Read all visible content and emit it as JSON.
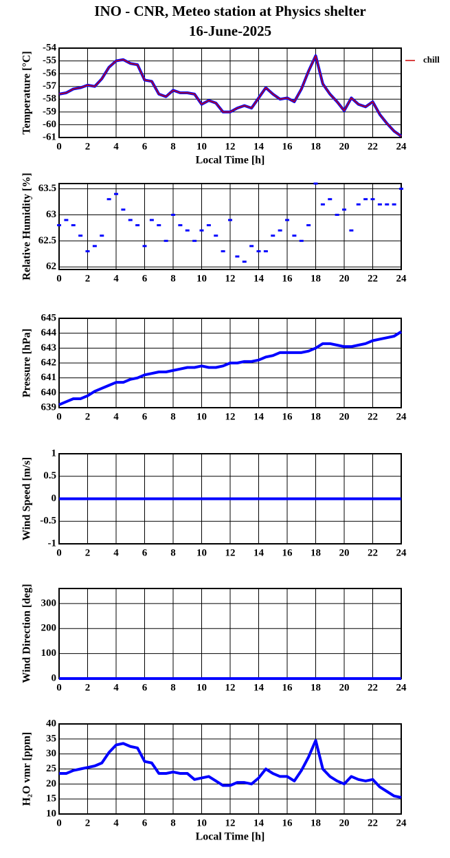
{
  "title": "INO - CNR, Meteo station at Physics shelter",
  "date": "16-June-2025",
  "chart_data": [
    {
      "type": "line",
      "ylabel": "Temperature [°C]",
      "xlabel": "Local Time [h]",
      "x": [
        0,
        0.5,
        1,
        1.5,
        2,
        2.5,
        3,
        3.5,
        4,
        4.5,
        5,
        5.5,
        6,
        6.5,
        7,
        7.5,
        8,
        8.5,
        9,
        9.5,
        10,
        10.5,
        11,
        11.5,
        12,
        12.5,
        13,
        13.5,
        14,
        14.5,
        15,
        15.5,
        16,
        16.5,
        17,
        17.5,
        18,
        18.5,
        19,
        19.5,
        20,
        20.5,
        21,
        21.5,
        22,
        22.5,
        23,
        23.5,
        24
      ],
      "xlim": [
        0,
        24
      ],
      "xticks": [
        0,
        2,
        4,
        6,
        8,
        10,
        12,
        14,
        16,
        18,
        20,
        22,
        24
      ],
      "ylim": [
        -61,
        -54
      ],
      "yticks": [
        -61,
        -60,
        -59,
        -58,
        -57,
        -56,
        -55,
        -54
      ],
      "grid": true,
      "legend": "right",
      "series": [
        {
          "color": "#0000ff",
          "values": [
            -57.6,
            -57.5,
            -57.2,
            -57.1,
            -56.9,
            -57.0,
            -56.4,
            -55.5,
            -55.0,
            -54.9,
            -55.2,
            -55.3,
            -56.5,
            -56.6,
            -57.6,
            -57.8,
            -57.3,
            -57.5,
            -57.5,
            -57.6,
            -58.4,
            -58.1,
            -58.3,
            -59.0,
            -59.0,
            -58.7,
            -58.5,
            -58.7,
            -57.9,
            -57.1,
            -57.6,
            -58.0,
            -57.9,
            -58.2,
            -57.2,
            -55.8,
            -54.6,
            -56.8,
            -57.6,
            -58.2,
            -58.9,
            -57.9,
            -58.4,
            -58.6,
            -58.2,
            -59.2,
            -59.9,
            -60.5,
            -60.9
          ]
        },
        {
          "name": "chill",
          "color": "#cc0000",
          "values": [
            -57.6,
            -57.5,
            -57.2,
            -57.1,
            -56.9,
            -57.0,
            -56.4,
            -55.5,
            -55.0,
            -54.9,
            -55.2,
            -55.3,
            -56.5,
            -56.6,
            -57.6,
            -57.8,
            -57.3,
            -57.5,
            -57.5,
            -57.6,
            -58.4,
            -58.1,
            -58.3,
            -59.0,
            -59.0,
            -58.7,
            -58.5,
            -58.7,
            -57.9,
            -57.1,
            -57.6,
            -58.0,
            -57.9,
            -58.2,
            -57.2,
            -55.8,
            -54.6,
            -56.8,
            -57.6,
            -58.2,
            -58.9,
            -57.9,
            -58.4,
            -58.6,
            -58.2,
            -59.2,
            -59.9,
            -60.5,
            -60.9
          ]
        }
      ]
    },
    {
      "type": "scatter",
      "ylabel": "Relative Humidity [%]",
      "x": [
        0,
        0.5,
        1,
        1.5,
        2,
        2.5,
        3,
        3.5,
        4,
        4.5,
        5,
        5.5,
        6,
        6.5,
        7,
        7.5,
        8,
        8.5,
        9,
        9.5,
        10,
        10.5,
        11,
        11.5,
        12,
        12.5,
        13,
        13.5,
        14,
        14.5,
        15,
        15.5,
        16,
        16.5,
        17,
        17.5,
        18,
        18.5,
        19,
        19.5,
        20,
        20.5,
        21,
        21.5,
        22,
        22.5,
        23,
        23.5,
        24
      ],
      "xlim": [
        0,
        24
      ],
      "xticks": [
        0,
        2,
        4,
        6,
        8,
        10,
        12,
        14,
        16,
        18,
        20,
        22,
        24
      ],
      "ylim": [
        61.95,
        63.6
      ],
      "yticks": [
        62,
        62.5,
        63,
        63.5
      ],
      "grid": true,
      "series": [
        {
          "color": "#0000ff",
          "values": [
            62.8,
            62.9,
            62.8,
            62.6,
            62.3,
            62.4,
            62.6,
            63.3,
            63.4,
            63.1,
            62.9,
            62.8,
            62.4,
            62.9,
            62.8,
            62.5,
            63.0,
            62.8,
            62.7,
            62.5,
            62.7,
            62.8,
            62.6,
            62.3,
            62.9,
            62.2,
            62.1,
            62.4,
            62.3,
            62.3,
            62.6,
            62.7,
            62.9,
            62.6,
            62.5,
            62.8,
            63.6,
            63.2,
            63.3,
            63.0,
            63.1,
            62.7,
            63.2,
            63.3,
            63.3,
            63.2,
            63.2,
            63.2,
            63.5
          ]
        }
      ]
    },
    {
      "type": "line",
      "ylabel": "Pressure [hPa]",
      "x": [
        0,
        0.5,
        1,
        1.5,
        2,
        2.5,
        3,
        3.5,
        4,
        4.5,
        5,
        5.5,
        6,
        6.5,
        7,
        7.5,
        8,
        8.5,
        9,
        9.5,
        10,
        10.5,
        11,
        11.5,
        12,
        12.5,
        13,
        13.5,
        14,
        14.5,
        15,
        15.5,
        16,
        16.5,
        17,
        17.5,
        18,
        18.5,
        19,
        19.5,
        20,
        20.5,
        21,
        21.5,
        22,
        22.5,
        23,
        23.5,
        24
      ],
      "xlim": [
        0,
        24
      ],
      "xticks": [
        0,
        2,
        4,
        6,
        8,
        10,
        12,
        14,
        16,
        18,
        20,
        22,
        24
      ],
      "ylim": [
        639,
        645
      ],
      "yticks": [
        639,
        640,
        641,
        642,
        643,
        644,
        645
      ],
      "grid": true,
      "series": [
        {
          "color": "#0000ff",
          "values": [
            639.2,
            639.4,
            639.6,
            639.6,
            639.8,
            640.1,
            640.3,
            640.5,
            640.7,
            640.7,
            640.9,
            641.0,
            641.2,
            641.3,
            641.4,
            641.4,
            641.5,
            641.6,
            641.7,
            641.7,
            641.8,
            641.7,
            641.7,
            641.8,
            642.0,
            642.0,
            642.1,
            642.1,
            642.2,
            642.4,
            642.5,
            642.7,
            642.7,
            642.7,
            642.7,
            642.8,
            643.0,
            643.3,
            643.3,
            643.2,
            643.1,
            643.1,
            643.2,
            643.3,
            643.5,
            643.6,
            643.7,
            643.8,
            644.1
          ]
        }
      ]
    },
    {
      "type": "line",
      "ylabel": "Wind Speed [m/s]",
      "x": [
        0,
        0.5,
        1,
        1.5,
        2,
        2.5,
        3,
        3.5,
        4,
        4.5,
        5,
        5.5,
        6,
        6.5,
        7,
        7.5,
        8,
        8.5,
        9,
        9.5,
        10,
        10.5,
        11,
        11.5,
        12,
        12.5,
        13,
        13.5,
        14,
        14.5,
        15,
        15.5,
        16,
        16.5,
        17,
        17.5,
        18,
        18.5,
        19,
        19.5,
        20,
        20.5,
        21,
        21.5,
        22,
        22.5,
        23,
        23.5,
        24
      ],
      "xlim": [
        0,
        24
      ],
      "xticks": [
        0,
        2,
        4,
        6,
        8,
        10,
        12,
        14,
        16,
        18,
        20,
        22,
        24
      ],
      "ylim": [
        -1,
        1
      ],
      "yticks": [
        -1,
        -0.5,
        0,
        0.5,
        1
      ],
      "grid": true,
      "series": [
        {
          "color": "#0000ff",
          "values": [
            0,
            0,
            0,
            0,
            0,
            0,
            0,
            0,
            0,
            0,
            0,
            0,
            0,
            0,
            0,
            0,
            0,
            0,
            0,
            0,
            0,
            0,
            0,
            0,
            0,
            0,
            0,
            0,
            0,
            0,
            0,
            0,
            0,
            0,
            0,
            0,
            0,
            0,
            0,
            0,
            0,
            0,
            0,
            0,
            0,
            0,
            0,
            0,
            0
          ]
        }
      ]
    },
    {
      "type": "line",
      "ylabel": "Wind Direction [deg]",
      "x": [
        0,
        0.5,
        1,
        1.5,
        2,
        2.5,
        3,
        3.5,
        4,
        4.5,
        5,
        5.5,
        6,
        6.5,
        7,
        7.5,
        8,
        8.5,
        9,
        9.5,
        10,
        10.5,
        11,
        11.5,
        12,
        12.5,
        13,
        13.5,
        14,
        14.5,
        15,
        15.5,
        16,
        16.5,
        17,
        17.5,
        18,
        18.5,
        19,
        19.5,
        20,
        20.5,
        21,
        21.5,
        22,
        22.5,
        23,
        23.5,
        24
      ],
      "xlim": [
        0,
        24
      ],
      "xticks": [
        0,
        2,
        4,
        6,
        8,
        10,
        12,
        14,
        16,
        18,
        20,
        22,
        24
      ],
      "ylim": [
        0,
        360
      ],
      "yticks": [
        0,
        100,
        200,
        300
      ],
      "grid": true,
      "series": [
        {
          "color": "#0000ff",
          "values": [
            0,
            0,
            0,
            0,
            0,
            0,
            0,
            0,
            0,
            0,
            0,
            0,
            0,
            0,
            0,
            0,
            0,
            0,
            0,
            0,
            0,
            0,
            0,
            0,
            0,
            0,
            0,
            0,
            0,
            0,
            0,
            0,
            0,
            0,
            0,
            0,
            0,
            0,
            0,
            0,
            0,
            0,
            0,
            0,
            0,
            0,
            0,
            0,
            0
          ]
        }
      ]
    },
    {
      "type": "line",
      "ylabel": "H₂O vmr [ppm]",
      "xlabel": "Local Time [h]",
      "x": [
        0,
        0.5,
        1,
        1.5,
        2,
        2.5,
        3,
        3.5,
        4,
        4.5,
        5,
        5.5,
        6,
        6.5,
        7,
        7.5,
        8,
        8.5,
        9,
        9.5,
        10,
        10.5,
        11,
        11.5,
        12,
        12.5,
        13,
        13.5,
        14,
        14.5,
        15,
        15.5,
        16,
        16.5,
        17,
        17.5,
        18,
        18.5,
        19,
        19.5,
        20,
        20.5,
        21,
        21.5,
        22,
        22.5,
        23,
        23.5,
        24
      ],
      "xlim": [
        0,
        24
      ],
      "xticks": [
        0,
        2,
        4,
        6,
        8,
        10,
        12,
        14,
        16,
        18,
        20,
        22,
        24
      ],
      "ylim": [
        10,
        40
      ],
      "yticks": [
        10,
        15,
        20,
        25,
        30,
        35,
        40
      ],
      "grid": true,
      "series": [
        {
          "color": "#0000ff",
          "values": [
            23.5,
            23.5,
            24.5,
            25,
            25.5,
            26,
            27,
            30.5,
            33,
            33.5,
            32.5,
            32,
            27.5,
            27,
            23.5,
            23.5,
            24,
            23.5,
            23.5,
            21.5,
            22,
            22.5,
            21,
            19.5,
            19.5,
            20.5,
            20.5,
            20,
            22,
            25,
            23.5,
            22.5,
            22.5,
            21,
            24.5,
            29,
            34.5,
            25,
            22.5,
            21,
            20,
            22.5,
            21.5,
            21,
            21.5,
            19,
            17.5,
            16,
            15.5
          ]
        }
      ]
    }
  ]
}
